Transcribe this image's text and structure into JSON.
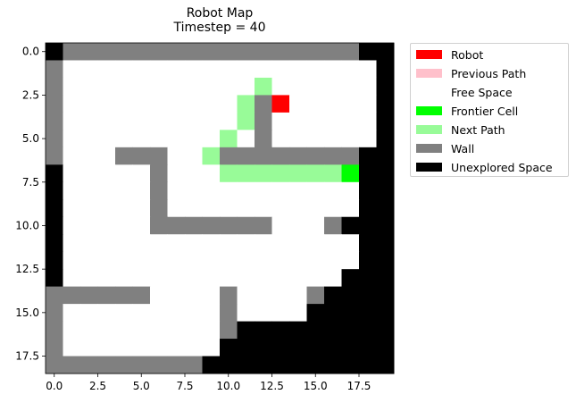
{
  "chart_data": {
    "type": "heatmap",
    "title": "Robot Map",
    "subtitle": "Timestep = 40",
    "xlabel": "",
    "ylabel": "",
    "xlim": [
      -0.5,
      19.5
    ],
    "ylim": [
      18.5,
      -0.5
    ],
    "x_ticks": [
      0,
      2.5,
      5,
      7.5,
      10,
      12.5,
      15,
      17.5
    ],
    "x_tick_labels": [
      "0.0",
      "2.5",
      "5.0",
      "7.5",
      "10.0",
      "12.5",
      "15.0",
      "17.5"
    ],
    "y_ticks": [
      0,
      2.5,
      5,
      7.5,
      10,
      12.5,
      15,
      17.5
    ],
    "y_tick_labels": [
      "0.0",
      "2.5",
      "5.0",
      "7.5",
      "10.0",
      "12.5",
      "15.0",
      "17.5"
    ],
    "legend_position": "outside-upper-right",
    "legend": [
      {
        "label": "Robot",
        "color": "#ff0000"
      },
      {
        "label": "Previous Path",
        "color": "#ffc0cb"
      },
      {
        "label": "Free Space",
        "color": "#ffffff"
      },
      {
        "label": "Frontier Cell",
        "color": "#00ff00"
      },
      {
        "label": "Next Path",
        "color": "#98fb98"
      },
      {
        "label": "Wall",
        "color": "#808080"
      },
      {
        "label": "Unexplored Space",
        "color": "#000000"
      }
    ],
    "cell_codes": {
      "U": "Unexplored Space",
      "W": "Wall",
      "F": "Free Space",
      "R": "Robot",
      "P": "Previous Path",
      "N": "Next Path",
      "C": "Frontier Cell"
    },
    "grid": [
      "UWWWWWWWWWWWWWWWWWUU",
      "WFFFFFFFFFFFFFFFFFFU",
      "WFFFFFFFFFFFNFFFFFFU",
      "WFFFFFFFFFFNWRFFFFFU",
      "WFFFFFFFFFFNWFFFFFFU",
      "WFFFFFFFFFNFWFFFFFFU",
      "WFFFWWWFFNWWWWWWWWUU",
      "UFFFFFWFFFNNNNNNNCUU",
      "UFFFFFWFFFFFFFFFFFUU",
      "UFFFFFWFFFFFFFFFFFUU",
      "UFFFFFWWWWWWWFFFWUUU",
      "UFFFFFFFFFFFFFFFFFUU",
      "UFFFFFFFFFFFFFFFFFUU",
      "UFFFFFFFFFFFFFFFFUUU",
      "WWWWWWFFFFWFFFFWUUUU",
      "WFFFFFFFFFWFFFFUUUUU",
      "WFFFFFFFFFWUUUUUUUUU",
      "WFFFFFFFFFUUUUUUUUUU",
      "WWWWWWWWWUUUUUUUUUUU"
    ]
  }
}
